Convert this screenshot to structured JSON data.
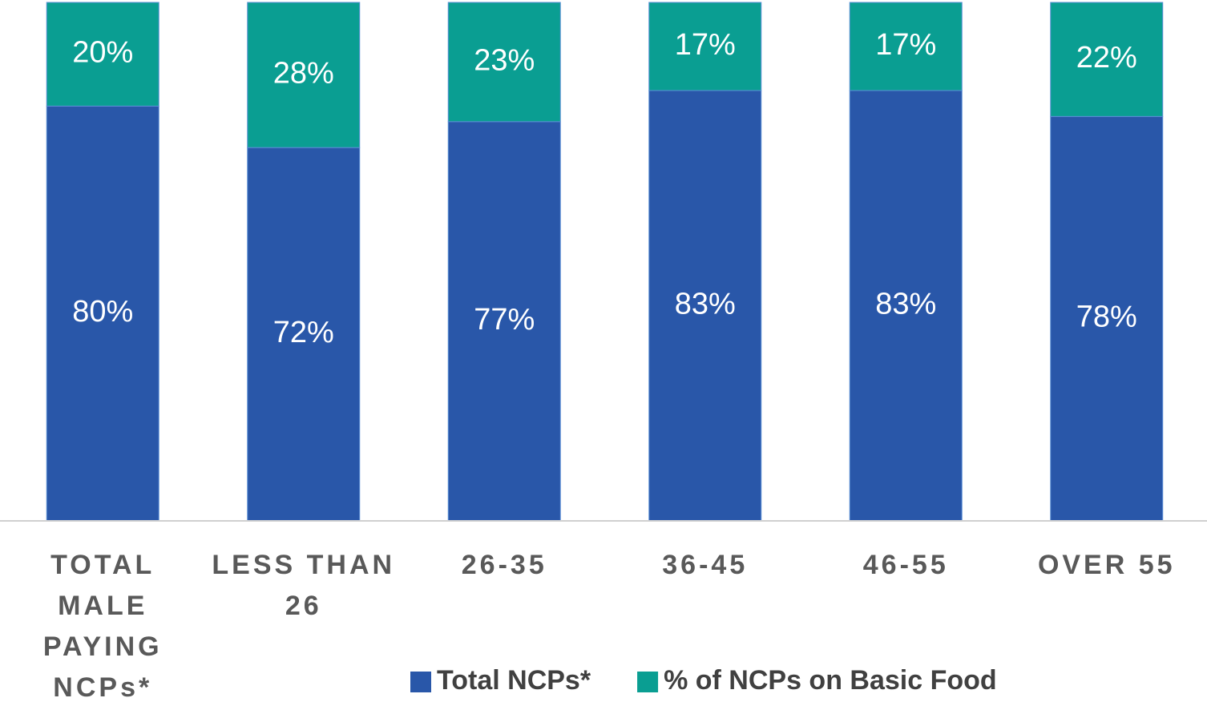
{
  "chart_data": {
    "type": "stacked_bar",
    "categories": [
      "TOTAL MALE PAYING NCPs*",
      "LESS THAN 26",
      "26-35",
      "36-45",
      "46-55",
      "OVER 55"
    ],
    "series": [
      {
        "name": "Total NCPs*",
        "color": "#2957a9",
        "values": [
          80,
          72,
          77,
          83,
          83,
          78
        ],
        "value_labels": [
          "80%",
          "72%",
          "77%",
          "83%",
          "83%",
          "78%"
        ]
      },
      {
        "name": "% of NCPs on Basic Food",
        "color": "#0a9e92",
        "values": [
          20,
          28,
          23,
          17,
          17,
          22
        ],
        "value_labels": [
          "20%",
          "28%",
          "23%",
          "17%",
          "17%",
          "22%"
        ]
      }
    ],
    "ylim": [
      0,
      100
    ],
    "legend": "bottom"
  }
}
